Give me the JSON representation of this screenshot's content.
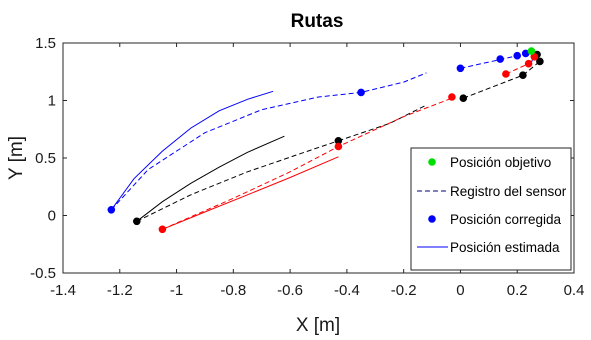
{
  "chart_data": {
    "type": "line",
    "title": "Rutas",
    "xlabel": "X [m]",
    "ylabel": "Y [m]",
    "xlim": [
      -1.4,
      0.4
    ],
    "ylim": [
      -0.5,
      1.5
    ],
    "xticks": [
      -1.4,
      -1.2,
      -1,
      -0.8,
      -0.6,
      -0.4,
      -0.2,
      0,
      0.2,
      0.4
    ],
    "yticks": [
      -0.5,
      0,
      0.5,
      1,
      1.5
    ],
    "xtick_labels": [
      "-1.4",
      "-1.2",
      "-1",
      "-0.8",
      "-0.6",
      "-0.4",
      "-0.2",
      "0",
      "0.2",
      "0.4"
    ],
    "ytick_labels": [
      "-0.5",
      "0",
      "0.5",
      "1",
      "1.5"
    ],
    "grid": false,
    "legend_position": "bottom-right",
    "legend": [
      {
        "label": "Posición objetivo",
        "style": "marker",
        "color": "#00e000"
      },
      {
        "label": "Registro del sensor",
        "style": "dashed",
        "color": "#000080"
      },
      {
        "label": "Posición corregida",
        "style": "marker",
        "color": "#0000ff"
      },
      {
        "label": "Posición estimada",
        "style": "solid",
        "color": "#0000ff"
      }
    ],
    "series": [
      {
        "color": "#0000ff",
        "style": "solid",
        "points": [
          [
            -1.23,
            0.05
          ],
          [
            -1.15,
            0.32
          ],
          [
            -1.05,
            0.56
          ],
          [
            -0.95,
            0.76
          ],
          [
            -0.85,
            0.91
          ],
          [
            -0.75,
            1.01
          ],
          [
            -0.66,
            1.08
          ]
        ]
      },
      {
        "color": "#0000ff",
        "style": "dashed",
        "points": [
          [
            -1.23,
            0.05
          ],
          [
            -1.1,
            0.4
          ],
          [
            -0.9,
            0.72
          ],
          [
            -0.7,
            0.92
          ],
          [
            -0.5,
            1.03
          ],
          [
            -0.35,
            1.07
          ],
          [
            -0.2,
            1.16
          ],
          [
            -0.12,
            1.24
          ]
        ]
      },
      {
        "color": "#0000ff",
        "style": "dashed",
        "points": [
          [
            0.0,
            1.28
          ],
          [
            0.13,
            1.35
          ],
          [
            0.2,
            1.39
          ],
          [
            0.23,
            1.41
          ],
          [
            0.26,
            1.4
          ],
          [
            0.25,
            1.33
          ]
        ]
      },
      {
        "color": "#0000ff",
        "style": "marker",
        "points": [
          [
            -1.23,
            0.05
          ],
          [
            -0.35,
            1.07
          ],
          [
            0.0,
            1.28
          ],
          [
            0.14,
            1.36
          ],
          [
            0.2,
            1.39
          ],
          [
            0.23,
            1.41
          ]
        ]
      },
      {
        "color": "#000000",
        "style": "solid",
        "points": [
          [
            -1.14,
            -0.05
          ],
          [
            -1.05,
            0.12
          ],
          [
            -0.95,
            0.28
          ],
          [
            -0.85,
            0.42
          ],
          [
            -0.75,
            0.55
          ],
          [
            -0.62,
            0.69
          ]
        ]
      },
      {
        "color": "#000000",
        "style": "dashed",
        "points": [
          [
            -1.14,
            -0.05
          ],
          [
            -0.95,
            0.18
          ],
          [
            -0.75,
            0.38
          ],
          [
            -0.55,
            0.55
          ],
          [
            -0.43,
            0.65
          ]
        ]
      },
      {
        "color": "#000000",
        "style": "dashed",
        "points": [
          [
            -0.43,
            0.65
          ],
          [
            -0.25,
            0.8
          ],
          [
            -0.12,
            0.96
          ]
        ]
      },
      {
        "color": "#000000",
        "style": "dashed",
        "points": [
          [
            0.01,
            1.02
          ],
          [
            0.22,
            1.22
          ],
          [
            0.28,
            1.34
          ],
          [
            0.27,
            1.4
          ]
        ]
      },
      {
        "color": "#000000",
        "style": "marker",
        "points": [
          [
            -1.14,
            -0.05
          ],
          [
            -0.43,
            0.65
          ],
          [
            0.01,
            1.02
          ],
          [
            0.22,
            1.22
          ],
          [
            0.28,
            1.34
          ],
          [
            0.27,
            1.4
          ]
        ]
      },
      {
        "color": "#ff0000",
        "style": "solid",
        "points": [
          [
            -1.05,
            -0.12
          ],
          [
            -0.9,
            0.03
          ],
          [
            -0.75,
            0.18
          ],
          [
            -0.6,
            0.33
          ],
          [
            -0.43,
            0.51
          ]
        ]
      },
      {
        "color": "#ff0000",
        "style": "dashed",
        "points": [
          [
            -1.05,
            -0.12
          ],
          [
            -0.8,
            0.15
          ],
          [
            -0.6,
            0.38
          ],
          [
            -0.43,
            0.6
          ],
          [
            -0.2,
            0.86
          ],
          [
            -0.03,
            1.02
          ]
        ]
      },
      {
        "color": "#ff0000",
        "style": "dashed",
        "points": [
          [
            0.16,
            1.23
          ],
          [
            0.24,
            1.32
          ],
          [
            0.27,
            1.38
          ],
          [
            0.25,
            1.43
          ]
        ]
      },
      {
        "color": "#ff0000",
        "style": "marker",
        "points": [
          [
            -1.05,
            -0.12
          ],
          [
            -0.43,
            0.6
          ],
          [
            -0.03,
            1.03
          ],
          [
            0.16,
            1.23
          ],
          [
            0.24,
            1.32
          ],
          [
            0.26,
            1.38
          ]
        ]
      },
      {
        "color": "#00e000",
        "style": "marker",
        "points": [
          [
            0.25,
            1.43
          ]
        ]
      }
    ]
  }
}
